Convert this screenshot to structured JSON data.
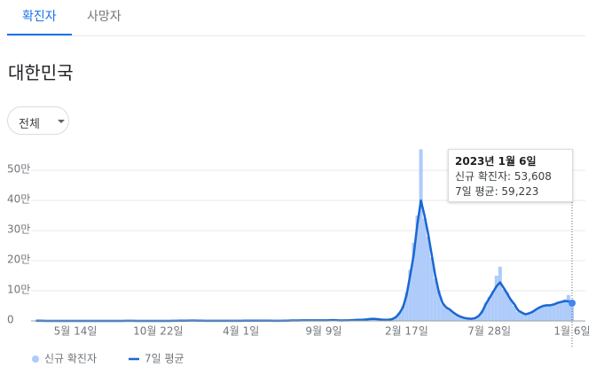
{
  "tabs": [
    "확진자",
    "사망자"
  ],
  "region": "대한민국",
  "filter": "전체",
  "tooltip": {
    "title": "2023년 1월 6일",
    "lines": [
      "신규 확진자: 53,608",
      "7일 평균: 59,223"
    ]
  },
  "chart_data": {
    "type": "bar",
    "categories": [
      null,
      null,
      null,
      null,
      null,
      null,
      null,
      null,
      null,
      null,
      null,
      "5월 14일",
      null,
      null,
      null,
      null,
      null,
      null,
      null,
      null,
      null,
      null,
      null,
      null,
      null,
      null,
      null,
      null,
      null,
      null,
      null,
      null,
      null,
      null,
      "10월 22일",
      null,
      null,
      null,
      null,
      null,
      null,
      null,
      null,
      null,
      null,
      null,
      null,
      null,
      null,
      null,
      null,
      null,
      null,
      null,
      null,
      null,
      null,
      "4월 1일",
      null,
      null,
      null,
      null,
      null,
      null,
      null,
      null,
      null,
      null,
      null,
      null,
      null,
      null,
      null,
      null,
      null,
      null,
      null,
      null,
      null,
      null,
      "9월 9일",
      null,
      null,
      null,
      null,
      null,
      null,
      null,
      null,
      null,
      null,
      null,
      null,
      null,
      null,
      null,
      null,
      null,
      null,
      null,
      null,
      null,
      null,
      "2월 17일",
      null,
      null,
      null,
      null,
      null,
      null,
      null,
      null,
      null,
      null,
      null,
      null,
      null,
      null,
      null,
      null,
      null,
      null,
      null,
      null,
      null,
      null,
      "7월 28일",
      null,
      null,
      null,
      null,
      null,
      null,
      null,
      null,
      null,
      null,
      null,
      null,
      null,
      null,
      null,
      null,
      null,
      null,
      null,
      null,
      null,
      null,
      "1월 6일"
    ],
    "series": [
      {
        "name": "신규 확진자",
        "type": "bar",
        "color": "#aecbfa",
        "values": [
          480,
          600,
          250,
          110,
          90,
          100,
          50,
          25,
          12,
          10,
          4,
          27,
          30,
          50,
          40,
          48,
          60,
          45,
          40,
          35,
          50,
          30,
          28,
          40,
          60,
          300,
          320,
          220,
          130,
          110,
          80,
          60,
          75,
          95,
          85,
          110,
          140,
          200,
          300,
          450,
          600,
          700,
          1000,
          1100,
          950,
          700,
          500,
          430,
          390,
          360,
          410,
          440,
          400,
          420,
          430,
          460,
          490,
          500,
          640,
          700,
          580,
          680,
          620,
          560,
          540,
          590,
          500,
          450,
          520,
          650,
          1000,
          1400,
          1550,
          1700,
          1800,
          1650,
          1900,
          1700,
          1850,
          1650,
          2000,
          2100,
          2900,
          2400,
          1900,
          1500,
          1800,
          2100,
          2700,
          3500,
          4000,
          4500,
          5300,
          7100,
          6800,
          5800,
          4300,
          3700,
          4300,
          6700,
          14000,
          28000,
          50000,
          95000,
          170000,
          260000,
          350000,
          570000,
          340000,
          280000,
          210000,
          140000,
          100000,
          55000,
          42000,
          35000,
          26000,
          19000,
          13000,
          9500,
          7500,
          6500,
          10000,
          18000,
          35000,
          60000,
          80000,
          100000,
          150000,
          180000,
          105000,
          95000,
          72000,
          50000,
          30000,
          27000,
          20000,
          27000,
          33000,
          40000,
          48000,
          52000,
          55000,
          50000,
          58000,
          63000,
          66000,
          72000,
          86000,
          53608
        ]
      },
      {
        "name": "7일 평균",
        "type": "line",
        "color": "#1967d2",
        "values": [
          400,
          550,
          300,
          120,
          100,
          90,
          60,
          30,
          15,
          8,
          5,
          20,
          25,
          40,
          45,
          45,
          50,
          50,
          45,
          40,
          45,
          35,
          30,
          35,
          50,
          250,
          350,
          250,
          150,
          120,
          90,
          70,
          70,
          90,
          90,
          100,
          120,
          180,
          250,
          400,
          550,
          650,
          900,
          1050,
          1000,
          750,
          550,
          450,
          400,
          380,
          400,
          420,
          420,
          410,
          420,
          440,
          470,
          480,
          600,
          650,
          600,
          650,
          600,
          570,
          550,
          560,
          520,
          470,
          500,
          600,
          900,
          1300,
          1500,
          1600,
          1750,
          1700,
          1800,
          1750,
          1800,
          1700,
          1900,
          2000,
          2500,
          2500,
          2000,
          1600,
          1700,
          2000,
          2600,
          3300,
          3800,
          4200,
          5000,
          6500,
          7000,
          6000,
          4500,
          3800,
          4000,
          6000,
          12000,
          25000,
          45000,
          85000,
          150000,
          220000,
          320000,
          400000,
          350000,
          290000,
          220000,
          150000,
          95000,
          60000,
          45000,
          38000,
          28000,
          20000,
          14000,
          10000,
          8000,
          7000,
          9000,
          16000,
          30000,
          55000,
          75000,
          95000,
          115000,
          128000,
          110000,
          90000,
          70000,
          55000,
          35000,
          28000,
          22000,
          25000,
          30000,
          38000,
          45000,
          50000,
          52000,
          52000,
          55000,
          60000,
          63000,
          66000,
          65000,
          59223
        ]
      }
    ],
    "ylim": [
      0,
      580000
    ],
    "yticks": [
      0,
      {
        "value": 100000,
        "label": "10만"
      },
      {
        "value": 200000,
        "label": "20만"
      },
      {
        "value": 300000,
        "label": "30만"
      },
      {
        "value": 400000,
        "label": "40만"
      },
      {
        "value": 500000,
        "label": "50만"
      }
    ],
    "grid": true
  }
}
